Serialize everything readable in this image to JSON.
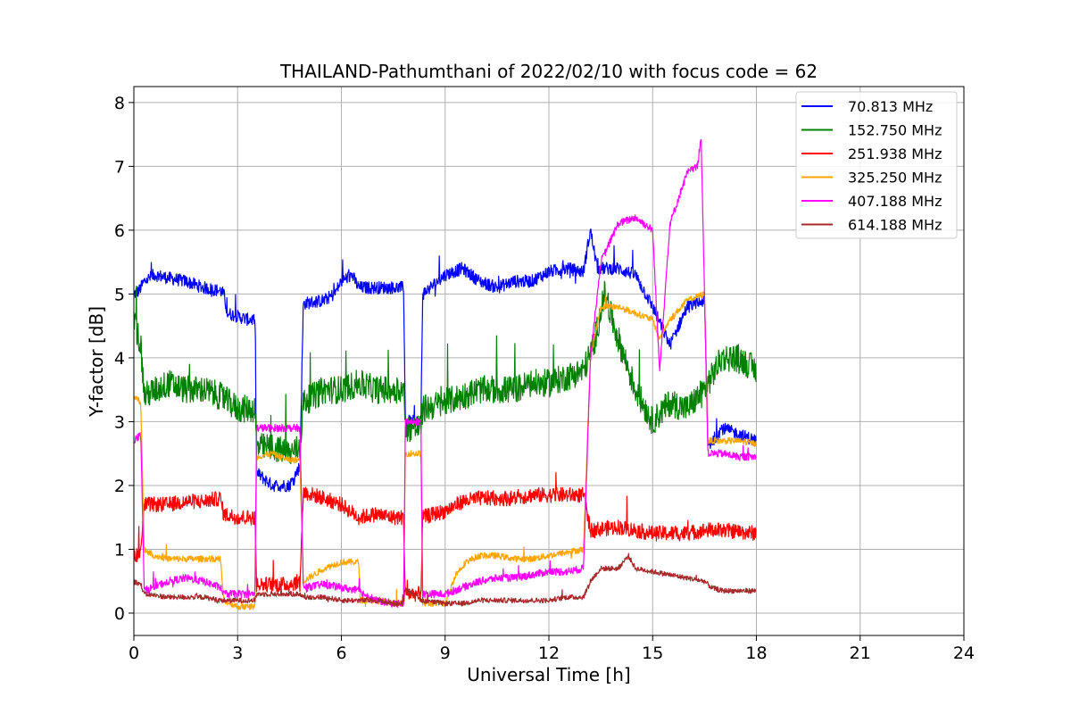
{
  "chart_data": {
    "type": "line",
    "title": "THAILAND-Pathumthani of 2022/02/10 with focus code = 62",
    "xlabel": "Universal Time [h]",
    "ylabel": "Y-factor [dB]",
    "xlim": [
      0,
      24
    ],
    "ylim": [
      -0.35,
      8.25
    ],
    "xticks": [
      "0",
      "3",
      "6",
      "9",
      "12",
      "15",
      "18",
      "21",
      "24"
    ],
    "yticks": [
      "0",
      "1",
      "2",
      "3",
      "4",
      "5",
      "6",
      "7",
      "8"
    ],
    "grid": true,
    "legend_position": "upper right",
    "series": [
      {
        "name": " 70.813 MHz",
        "color": "#0000ff",
        "noise": 0.1,
        "points": [
          [
            0.0,
            5.0
          ],
          [
            0.15,
            5.05
          ],
          [
            0.3,
            5.2
          ],
          [
            0.6,
            5.3
          ],
          [
            1.0,
            5.25
          ],
          [
            1.5,
            5.2
          ],
          [
            2.0,
            5.1
          ],
          [
            2.5,
            5.05
          ],
          [
            2.6,
            5.0
          ],
          [
            2.7,
            4.7
          ],
          [
            3.0,
            4.65
          ],
          [
            3.3,
            4.6
          ],
          [
            3.5,
            4.6
          ],
          [
            3.55,
            2.2
          ],
          [
            4.0,
            2.0
          ],
          [
            4.5,
            2.0
          ],
          [
            4.8,
            2.3
          ],
          [
            4.9,
            4.85
          ],
          [
            5.5,
            4.9
          ],
          [
            5.8,
            5.0
          ],
          [
            6.0,
            5.2
          ],
          [
            6.3,
            5.3
          ],
          [
            6.5,
            5.1
          ],
          [
            7.0,
            5.1
          ],
          [
            7.5,
            5.1
          ],
          [
            7.8,
            5.1
          ],
          [
            7.85,
            3.0
          ],
          [
            8.3,
            3.0
          ],
          [
            8.35,
            5.0
          ],
          [
            9.0,
            5.3
          ],
          [
            9.5,
            5.4
          ],
          [
            10.0,
            5.2
          ],
          [
            10.5,
            5.1
          ],
          [
            11.0,
            5.2
          ],
          [
            11.5,
            5.2
          ],
          [
            12.0,
            5.35
          ],
          [
            12.5,
            5.4
          ],
          [
            13.0,
            5.35
          ],
          [
            13.2,
            6.0
          ],
          [
            13.4,
            5.4
          ],
          [
            14.0,
            5.4
          ],
          [
            14.5,
            5.3
          ],
          [
            15.0,
            4.8
          ],
          [
            15.5,
            4.2
          ],
          [
            16.0,
            4.8
          ],
          [
            16.5,
            4.9
          ],
          [
            16.6,
            2.6
          ],
          [
            17.0,
            2.9
          ],
          [
            17.5,
            2.8
          ],
          [
            18.0,
            2.7
          ]
        ]
      },
      {
        "name": "152.750 MHz",
        "color": "#008000",
        "noise": 0.22,
        "points": [
          [
            0.0,
            4.6
          ],
          [
            0.2,
            4.2
          ],
          [
            0.3,
            3.4
          ],
          [
            1.0,
            3.6
          ],
          [
            1.5,
            3.5
          ],
          [
            2.0,
            3.5
          ],
          [
            2.5,
            3.4
          ],
          [
            3.0,
            3.2
          ],
          [
            3.5,
            3.2
          ],
          [
            3.55,
            2.6
          ],
          [
            4.0,
            2.6
          ],
          [
            4.5,
            2.5
          ],
          [
            4.8,
            2.6
          ],
          [
            4.9,
            3.3
          ],
          [
            5.5,
            3.5
          ],
          [
            6.0,
            3.5
          ],
          [
            6.5,
            3.6
          ],
          [
            7.0,
            3.5
          ],
          [
            7.5,
            3.5
          ],
          [
            7.8,
            3.5
          ],
          [
            7.85,
            2.9
          ],
          [
            8.3,
            2.9
          ],
          [
            8.35,
            3.2
          ],
          [
            9.0,
            3.3
          ],
          [
            9.5,
            3.4
          ],
          [
            10.0,
            3.5
          ],
          [
            10.5,
            3.5
          ],
          [
            11.0,
            3.5
          ],
          [
            11.5,
            3.6
          ],
          [
            12.0,
            3.6
          ],
          [
            12.5,
            3.7
          ],
          [
            13.0,
            3.8
          ],
          [
            13.3,
            4.2
          ],
          [
            13.6,
            5.0
          ],
          [
            14.0,
            4.3
          ],
          [
            14.5,
            3.5
          ],
          [
            15.0,
            3.0
          ],
          [
            15.5,
            3.3
          ],
          [
            16.0,
            3.2
          ],
          [
            16.5,
            3.5
          ],
          [
            17.0,
            4.0
          ],
          [
            17.5,
            4.0
          ],
          [
            18.0,
            3.8
          ]
        ]
      },
      {
        "name": "251.938 MHz",
        "color": "#ff0000",
        "noise": 0.12,
        "points": [
          [
            0.0,
            0.9
          ],
          [
            0.2,
            0.95
          ],
          [
            0.3,
            1.7
          ],
          [
            1.0,
            1.7
          ],
          [
            1.5,
            1.75
          ],
          [
            2.0,
            1.75
          ],
          [
            2.5,
            1.8
          ],
          [
            2.6,
            1.55
          ],
          [
            3.0,
            1.5
          ],
          [
            3.5,
            1.5
          ],
          [
            3.55,
            0.45
          ],
          [
            4.0,
            0.45
          ],
          [
            4.5,
            0.45
          ],
          [
            4.8,
            0.5
          ],
          [
            4.9,
            1.9
          ],
          [
            5.5,
            1.8
          ],
          [
            6.0,
            1.7
          ],
          [
            6.5,
            1.5
          ],
          [
            7.0,
            1.55
          ],
          [
            7.5,
            1.5
          ],
          [
            7.8,
            1.5
          ],
          [
            7.85,
            0.3
          ],
          [
            8.3,
            0.3
          ],
          [
            8.35,
            1.5
          ],
          [
            9.0,
            1.6
          ],
          [
            9.5,
            1.75
          ],
          [
            10.0,
            1.8
          ],
          [
            10.5,
            1.8
          ],
          [
            11.0,
            1.8
          ],
          [
            11.5,
            1.85
          ],
          [
            12.0,
            1.85
          ],
          [
            12.5,
            1.85
          ],
          [
            13.0,
            1.85
          ],
          [
            13.2,
            1.3
          ],
          [
            14.0,
            1.35
          ],
          [
            15.0,
            1.25
          ],
          [
            16.0,
            1.25
          ],
          [
            16.5,
            1.3
          ],
          [
            17.0,
            1.3
          ],
          [
            18.0,
            1.25
          ]
        ]
      },
      {
        "name": "325.250 MHz",
        "color": "#ffa500",
        "noise": 0.05,
        "points": [
          [
            0.0,
            3.4
          ],
          [
            0.2,
            3.3
          ],
          [
            0.3,
            1.0
          ],
          [
            0.6,
            0.9
          ],
          [
            1.0,
            0.85
          ],
          [
            1.5,
            0.85
          ],
          [
            2.0,
            0.85
          ],
          [
            2.5,
            0.85
          ],
          [
            2.6,
            0.2
          ],
          [
            3.0,
            0.1
          ],
          [
            3.5,
            0.1
          ],
          [
            3.55,
            2.45
          ],
          [
            4.0,
            2.5
          ],
          [
            4.5,
            2.4
          ],
          [
            4.8,
            2.4
          ],
          [
            4.9,
            0.5
          ],
          [
            5.5,
            0.7
          ],
          [
            6.0,
            0.8
          ],
          [
            6.5,
            0.8
          ],
          [
            6.55,
            0.2
          ],
          [
            7.0,
            0.2
          ],
          [
            7.5,
            0.15
          ],
          [
            7.8,
            0.15
          ],
          [
            7.85,
            2.5
          ],
          [
            8.3,
            2.5
          ],
          [
            8.35,
            0.15
          ],
          [
            9.0,
            0.15
          ],
          [
            9.3,
            0.6
          ],
          [
            9.6,
            0.8
          ],
          [
            10.0,
            0.9
          ],
          [
            10.5,
            0.9
          ],
          [
            11.0,
            0.85
          ],
          [
            11.5,
            0.85
          ],
          [
            12.0,
            0.9
          ],
          [
            12.5,
            0.95
          ],
          [
            13.0,
            1.0
          ],
          [
            13.2,
            4.0
          ],
          [
            13.5,
            4.8
          ],
          [
            14.0,
            4.8
          ],
          [
            14.5,
            4.7
          ],
          [
            15.0,
            4.6
          ],
          [
            15.2,
            4.3
          ],
          [
            15.5,
            4.6
          ],
          [
            16.0,
            4.9
          ],
          [
            16.5,
            5.0
          ],
          [
            16.6,
            2.7
          ],
          [
            17.0,
            2.7
          ],
          [
            17.5,
            2.7
          ],
          [
            18.0,
            2.65
          ]
        ]
      },
      {
        "name": "407.188 MHz",
        "color": "#ff00ff",
        "noise": 0.06,
        "points": [
          [
            0.0,
            2.7
          ],
          [
            0.2,
            2.8
          ],
          [
            0.3,
            0.35
          ],
          [
            1.0,
            0.5
          ],
          [
            1.5,
            0.55
          ],
          [
            2.0,
            0.5
          ],
          [
            2.5,
            0.4
          ],
          [
            2.6,
            0.3
          ],
          [
            3.0,
            0.3
          ],
          [
            3.5,
            0.3
          ],
          [
            3.55,
            2.9
          ],
          [
            4.0,
            2.9
          ],
          [
            4.5,
            2.9
          ],
          [
            4.8,
            2.9
          ],
          [
            4.9,
            0.4
          ],
          [
            5.5,
            0.45
          ],
          [
            6.0,
            0.4
          ],
          [
            6.5,
            0.35
          ],
          [
            7.0,
            0.2
          ],
          [
            7.5,
            0.15
          ],
          [
            7.8,
            0.15
          ],
          [
            7.85,
            3.0
          ],
          [
            8.3,
            3.0
          ],
          [
            8.35,
            0.3
          ],
          [
            9.0,
            0.3
          ],
          [
            9.5,
            0.4
          ],
          [
            10.0,
            0.5
          ],
          [
            10.5,
            0.55
          ],
          [
            11.0,
            0.55
          ],
          [
            11.5,
            0.6
          ],
          [
            12.0,
            0.65
          ],
          [
            12.5,
            0.65
          ],
          [
            13.0,
            0.7
          ],
          [
            13.2,
            4.0
          ],
          [
            13.5,
            5.5
          ],
          [
            14.0,
            6.1
          ],
          [
            14.5,
            6.2
          ],
          [
            15.0,
            6.0
          ],
          [
            15.2,
            3.8
          ],
          [
            15.5,
            6.1
          ],
          [
            16.0,
            6.9
          ],
          [
            16.3,
            7.0
          ],
          [
            16.4,
            7.5
          ],
          [
            16.6,
            2.5
          ],
          [
            17.0,
            2.5
          ],
          [
            17.5,
            2.45
          ],
          [
            18.0,
            2.45
          ]
        ]
      },
      {
        "name": "614.188 MHz",
        "color": "#a52a2a",
        "noise": 0.04,
        "points": [
          [
            0.0,
            0.5
          ],
          [
            0.2,
            0.45
          ],
          [
            0.3,
            0.3
          ],
          [
            1.0,
            0.25
          ],
          [
            1.5,
            0.25
          ],
          [
            2.0,
            0.25
          ],
          [
            2.5,
            0.2
          ],
          [
            3.0,
            0.2
          ],
          [
            3.5,
            0.2
          ],
          [
            3.55,
            0.3
          ],
          [
            4.0,
            0.3
          ],
          [
            4.5,
            0.3
          ],
          [
            4.8,
            0.3
          ],
          [
            4.9,
            0.25
          ],
          [
            5.5,
            0.25
          ],
          [
            6.0,
            0.2
          ],
          [
            6.5,
            0.2
          ],
          [
            7.0,
            0.2
          ],
          [
            7.5,
            0.15
          ],
          [
            7.8,
            0.15
          ],
          [
            7.85,
            0.4
          ],
          [
            8.3,
            0.2
          ],
          [
            9.0,
            0.15
          ],
          [
            9.5,
            0.15
          ],
          [
            10.0,
            0.2
          ],
          [
            10.5,
            0.2
          ],
          [
            11.0,
            0.2
          ],
          [
            11.5,
            0.2
          ],
          [
            12.0,
            0.2
          ],
          [
            12.5,
            0.25
          ],
          [
            13.0,
            0.25
          ],
          [
            13.2,
            0.5
          ],
          [
            13.5,
            0.7
          ],
          [
            14.0,
            0.7
          ],
          [
            14.3,
            0.9
          ],
          [
            14.5,
            0.7
          ],
          [
            15.0,
            0.65
          ],
          [
            15.5,
            0.6
          ],
          [
            16.0,
            0.55
          ],
          [
            16.5,
            0.5
          ],
          [
            16.7,
            0.4
          ],
          [
            17.0,
            0.35
          ],
          [
            17.5,
            0.35
          ],
          [
            18.0,
            0.35
          ]
        ]
      }
    ]
  }
}
